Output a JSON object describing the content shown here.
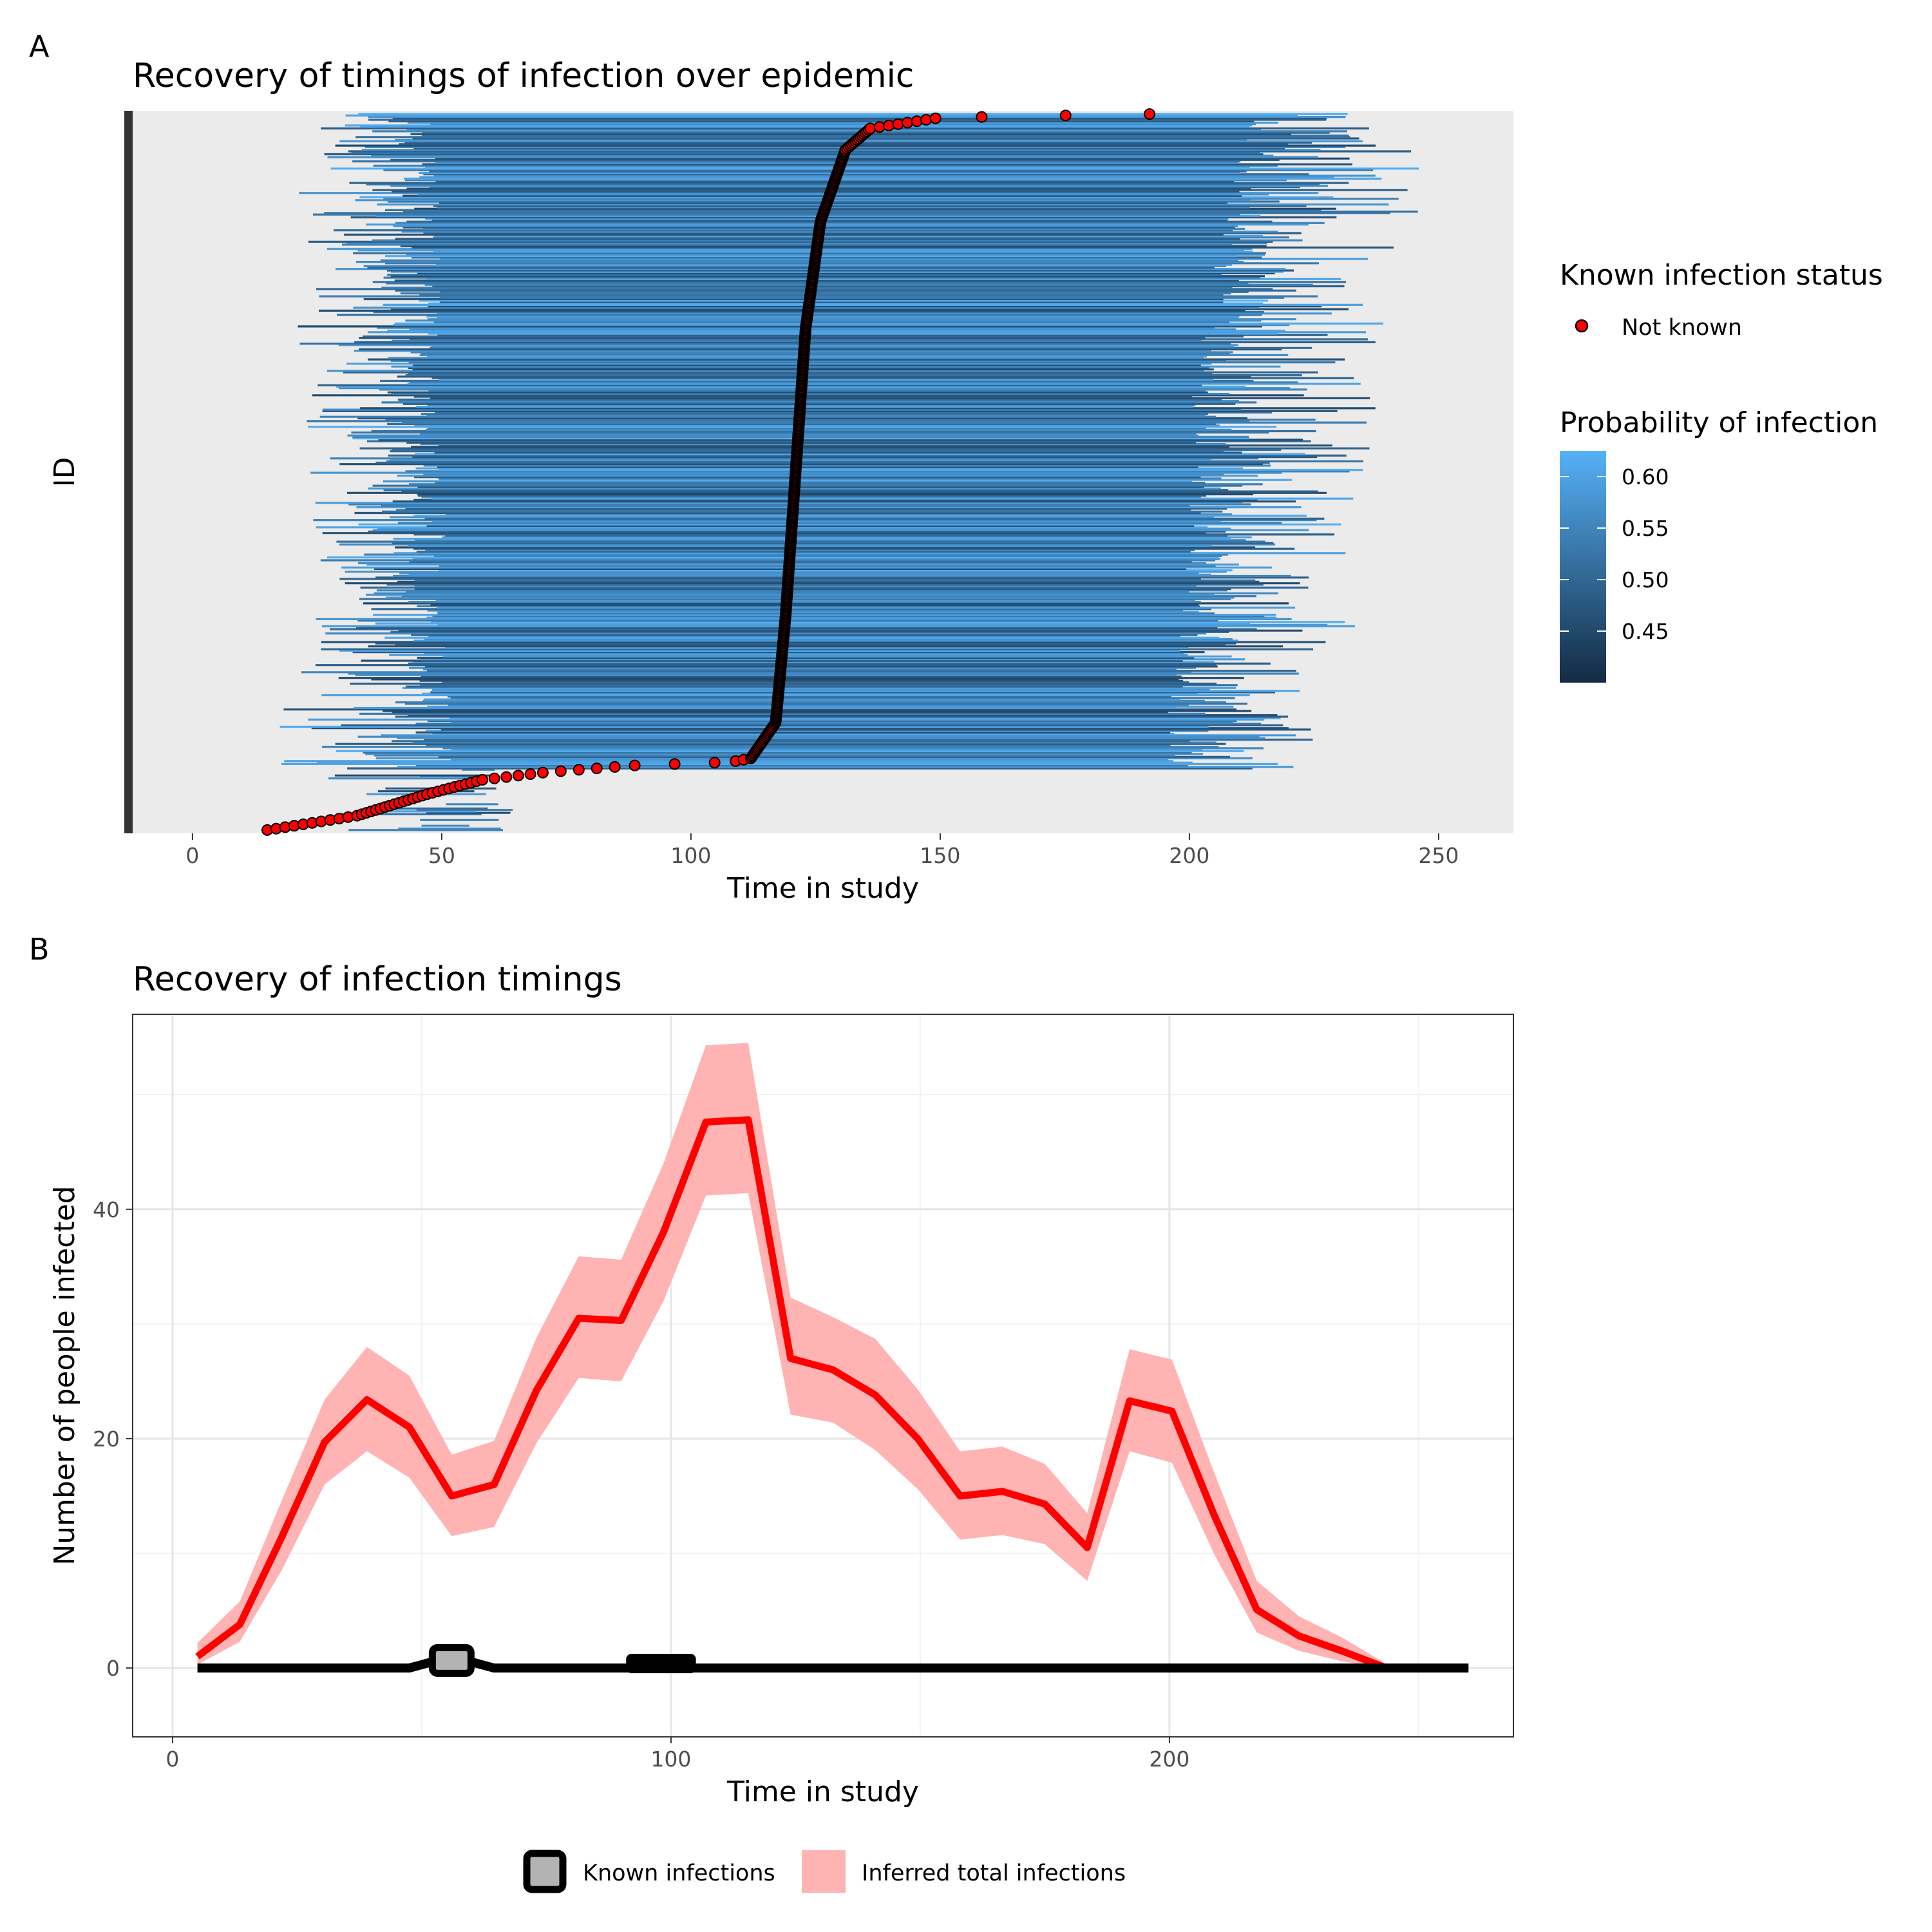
{
  "figure": {
    "panels": [
      "A",
      "B"
    ]
  },
  "chart_data": [
    {
      "type": "scatter",
      "panel": "A",
      "title": "Recovery of timings of infection over epidemic",
      "xlabel": "Time in study",
      "ylabel": "ID",
      "xlim": [
        -12,
        265
      ],
      "xticks": [
        0,
        50,
        100,
        150,
        200,
        250
      ],
      "n_individuals": 500,
      "background": "#ebebeb",
      "legend_points": {
        "title": "Known infection status",
        "entries": [
          {
            "label": "Not known",
            "color": "#ff0000"
          }
        ]
      },
      "legend_color": {
        "title": "Probability of infection",
        "ticks": [
          0.45,
          0.5,
          0.55,
          0.6
        ],
        "tick_labels": [
          "0.45",
          "0.50",
          "0.55",
          "0.60"
        ],
        "range": [
          0.4,
          0.625
        ],
        "low_color": "#132b43",
        "high_color": "#56b1f7"
      },
      "point_curve": {
        "description": "sorted inferred infection time per individual (bottom to top)",
        "quantile": [
          0.0,
          0.02,
          0.05,
          0.07,
          0.08,
          0.09,
          0.095,
          0.1,
          0.15,
          0.3,
          0.5,
          0.7,
          0.85,
          0.95,
          0.98,
          0.995,
          1.0
        ],
        "time": [
          15,
          33,
          47,
          58,
          70,
          88,
          108,
          112,
          117,
          119,
          121,
          123,
          126,
          131,
          136,
          150,
          192
        ]
      },
      "segment_envelope": {
        "quantile": [
          0.0,
          0.05,
          0.1,
          0.2,
          0.4,
          0.6,
          0.8,
          0.95,
          1.0
        ],
        "start_min": [
          5,
          10,
          12,
          18,
          22,
          22,
          20,
          21,
          22
        ],
        "start_max": [
          50,
          52,
          52,
          52,
          51,
          50,
          50,
          49,
          48
        ],
        "end_min": [
          185,
          190,
          195,
          196,
          200,
          200,
          205,
          210,
          210
        ],
        "end_max": [
          222,
          226,
          228,
          233,
          236,
          240,
          245,
          250,
          245
        ]
      }
    },
    {
      "type": "line",
      "panel": "B",
      "title": "Recovery of infection timings",
      "xlabel": "Time in study",
      "ylabel": "Number of people infected",
      "xlim": [
        -8,
        269
      ],
      "ylim": [
        -6,
        57
      ],
      "xticks": [
        0,
        100,
        200
      ],
      "yticks": [
        0,
        20,
        40
      ],
      "legend": {
        "entries": [
          {
            "label": "Known infections",
            "fill": "#b3b3b3",
            "stroke": "#000000"
          },
          {
            "label": "Inferred total infections",
            "fill": "#ffb3b3"
          }
        ]
      },
      "series": [
        {
          "role": "inferred_mean",
          "color": "#ff0000",
          "x": [
            5,
            13.5,
            22,
            30.5,
            39,
            47.5,
            56,
            64.5,
            73,
            81.5,
            90,
            98.5,
            107,
            115.5,
            124,
            132.5,
            141,
            149.5,
            158,
            166.5,
            175,
            183.5,
            192,
            200.5,
            209,
            217.5,
            226,
            234.5,
            243
          ],
          "values": [
            1.0,
            3.8,
            11.5,
            19.7,
            23.4,
            21.0,
            15.0,
            16.0,
            24.2,
            30.5,
            30.3,
            38.0,
            47.6,
            47.8,
            27.0,
            26.0,
            23.8,
            20.0,
            15.0,
            15.4,
            14.3,
            10.5,
            23.3,
            22.4,
            13.3,
            5.1,
            2.8,
            1.5,
            0.1
          ]
        },
        {
          "role": "inferred_band",
          "color": "#ffb3b3",
          "x": [
            5,
            13.5,
            22,
            30.5,
            39,
            47.5,
            56,
            64.5,
            73,
            81.5,
            90,
            98.5,
            107,
            115.5,
            124,
            132.5,
            141,
            149.5,
            158,
            166.5,
            175,
            183.5,
            192,
            200.5,
            209,
            217.5,
            226,
            234.5,
            243
          ],
          "lower": [
            0.3,
            2.3,
            8.6,
            16.0,
            18.9,
            16.6,
            11.5,
            12.3,
            19.6,
            25.3,
            25.0,
            32.0,
            41.2,
            41.4,
            22.1,
            21.4,
            19.0,
            15.6,
            11.2,
            11.6,
            10.8,
            7.6,
            18.9,
            17.9,
            9.9,
            3.1,
            1.5,
            0.6,
            0.0
          ],
          "upper": [
            2.2,
            5.8,
            14.7,
            23.4,
            28.0,
            25.5,
            18.6,
            19.8,
            28.8,
            35.9,
            35.6,
            44.0,
            54.3,
            54.5,
            32.3,
            30.6,
            28.7,
            24.3,
            18.9,
            19.3,
            17.8,
            13.5,
            27.8,
            26.9,
            17.0,
            7.6,
            4.5,
            2.7,
            0.5
          ]
        },
        {
          "role": "known",
          "color": "#000000",
          "fill": "#b3b3b3",
          "x": [
            5,
            13.5,
            22,
            30.5,
            39,
            47.5,
            56,
            64.5,
            73,
            81.5,
            90,
            98.5,
            107,
            115.5,
            124,
            132.5,
            141,
            149.5,
            158,
            166.5,
            175,
            183.5,
            192,
            200.5,
            209,
            217.5,
            226,
            234.5,
            243,
            251.5,
            260
          ],
          "values": [
            0,
            0,
            0,
            0,
            0,
            0,
            1,
            0,
            0,
            0,
            0,
            0,
            0,
            0,
            0,
            0,
            0,
            0,
            0,
            0,
            0,
            0,
            0,
            0,
            0,
            0,
            0,
            0,
            0,
            0,
            0
          ]
        }
      ]
    }
  ]
}
